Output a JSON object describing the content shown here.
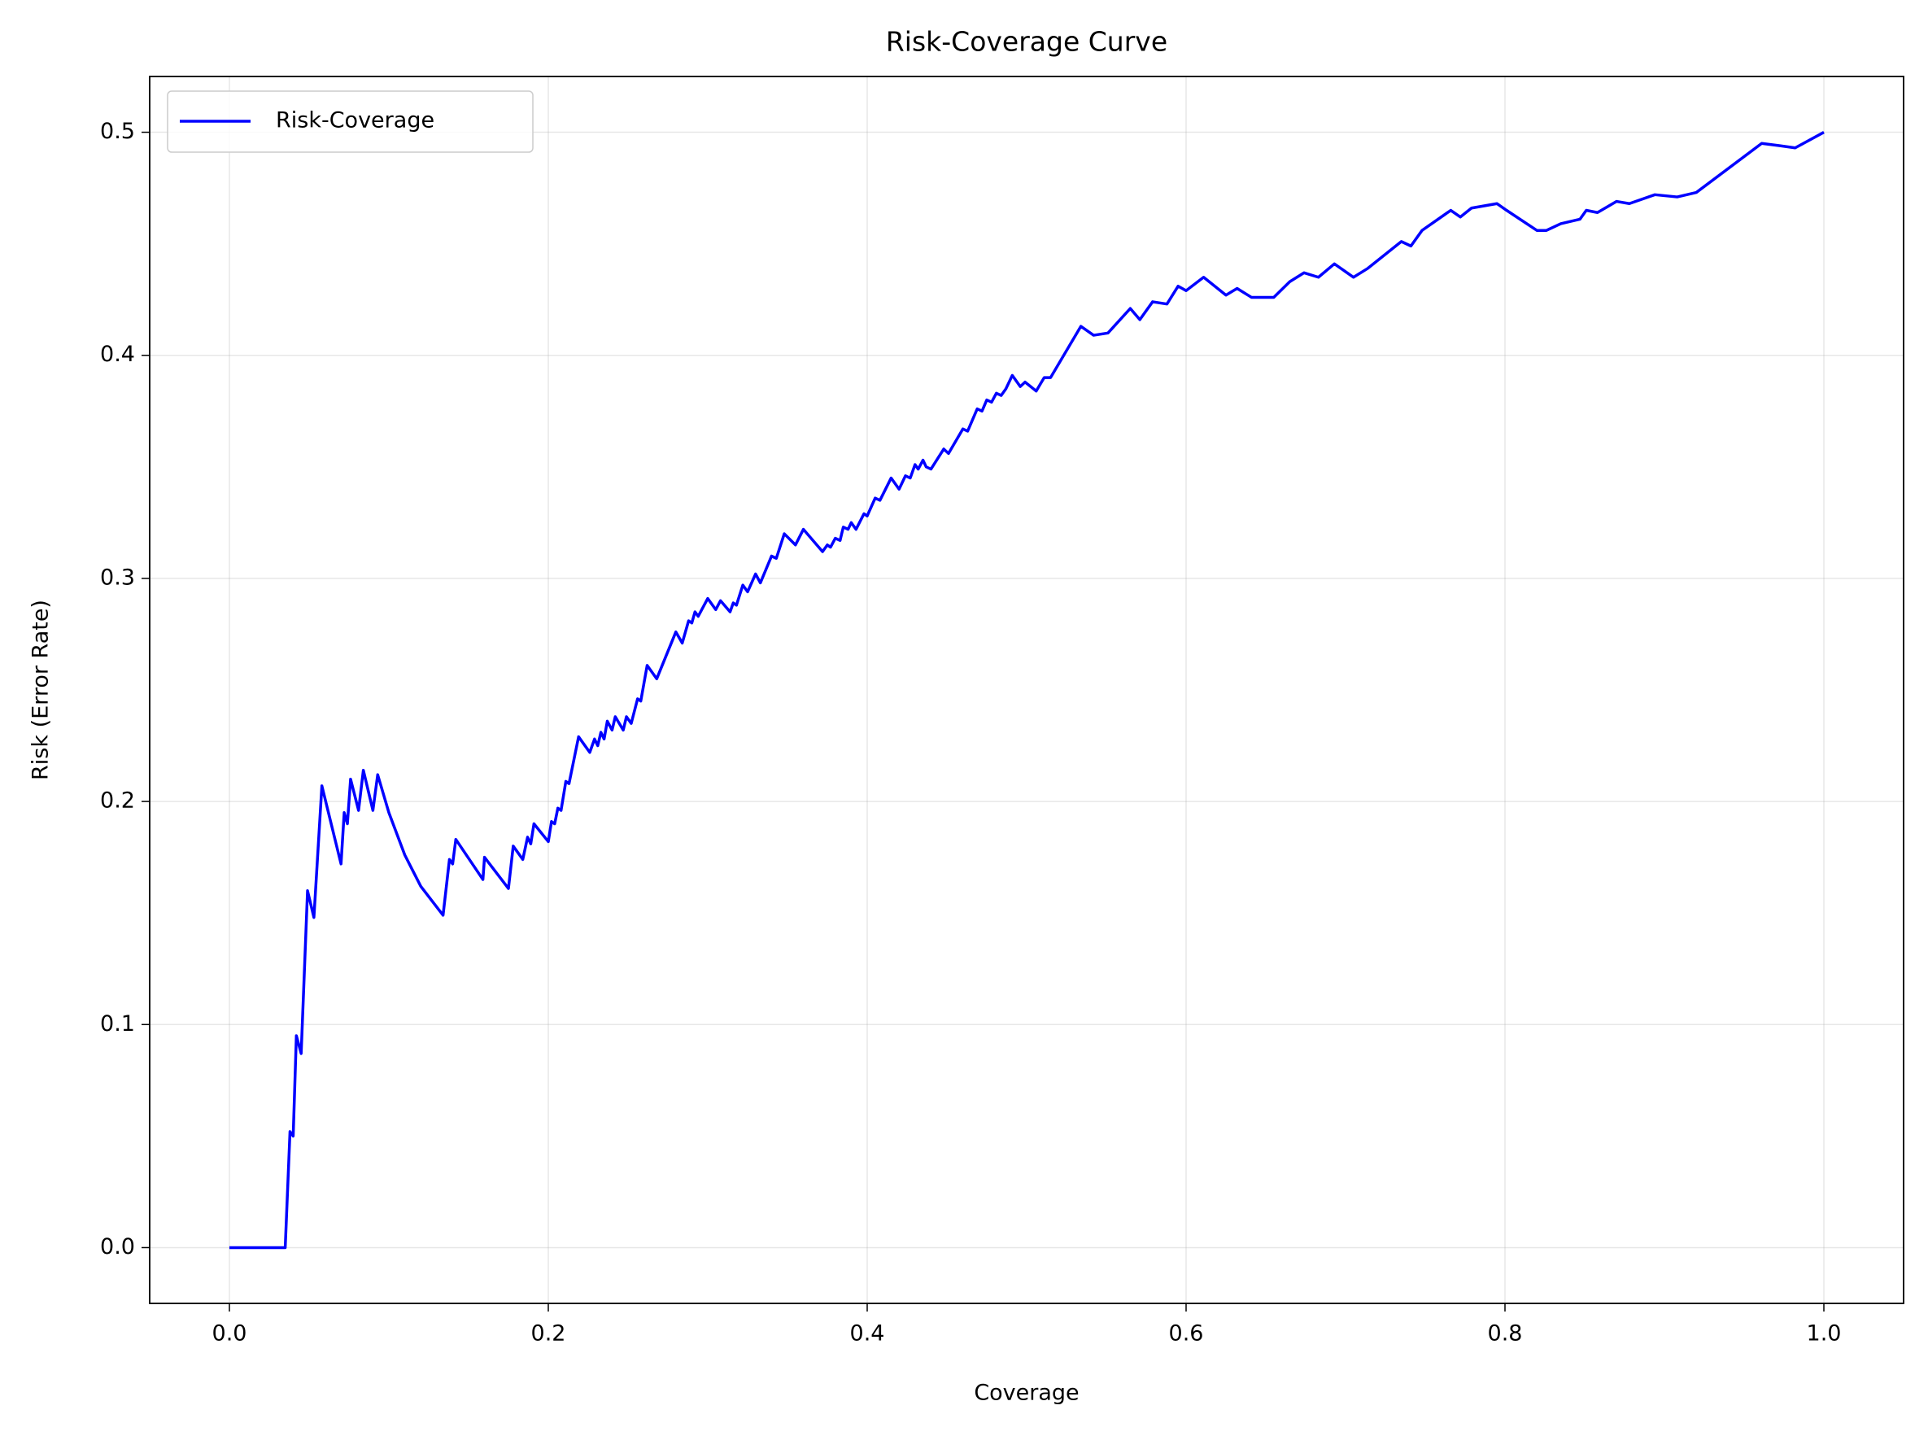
{
  "chart_data": {
    "type": "line",
    "title": "Risk-Coverage Curve",
    "x_label": "Coverage",
    "y_label": "Risk (Error Rate)",
    "x": [
      0,
      0.035,
      0.038,
      0.04,
      0.042,
      0.045,
      0.049,
      0.053,
      0.058,
      0.07,
      0.072,
      0.074,
      0.076,
      0.081,
      0.084,
      0.09,
      0.093,
      0.1,
      0.11,
      0.12,
      0.134,
      0.138,
      0.14,
      0.142,
      0.159,
      0.16,
      0.175,
      0.178,
      0.184,
      0.187,
      0.189,
      0.191,
      0.2,
      0.202,
      0.204,
      0.206,
      0.208,
      0.211,
      0.213,
      0.219,
      0.226,
      0.229,
      0.231,
      0.233,
      0.235,
      0.237,
      0.24,
      0.242,
      0.247,
      0.249,
      0.252,
      0.256,
      0.258,
      0.262,
      0.268,
      0.28,
      0.284,
      0.288,
      0.29,
      0.292,
      0.294,
      0.3,
      0.305,
      0.308,
      0.314,
      0.316,
      0.318,
      0.322,
      0.325,
      0.33,
      0.333,
      0.34,
      0.343,
      0.348,
      0.355,
      0.36,
      0.372,
      0.375,
      0.377,
      0.38,
      0.383,
      0.385,
      0.388,
      0.39,
      0.393,
      0.398,
      0.4,
      0.405,
      0.408,
      0.415,
      0.42,
      0.424,
      0.427,
      0.43,
      0.432,
      0.435,
      0.437,
      0.44,
      0.448,
      0.451,
      0.46,
      0.463,
      0.469,
      0.472,
      0.475,
      0.478,
      0.481,
      0.484,
      0.487,
      0.491,
      0.496,
      0.499,
      0.506,
      0.511,
      0.515,
      0.534,
      0.542,
      0.551,
      0.565,
      0.571,
      0.579,
      0.588,
      0.595,
      0.6,
      0.611,
      0.625,
      0.632,
      0.641,
      0.655,
      0.665,
      0.674,
      0.683,
      0.693,
      0.705,
      0.714,
      0.735,
      0.741,
      0.748,
      0.766,
      0.772,
      0.779,
      0.795,
      0.801,
      0.82,
      0.826,
      0.835,
      0.847,
      0.851,
      0.858,
      0.87,
      0.878,
      0.894,
      0.908,
      0.92,
      0.961,
      0.972,
      0.982,
      1.0
    ],
    "series": [
      {
        "name": "Risk-Coverage",
        "color": "#0000ff",
        "values": [
          0,
          0,
          0.052,
          0.05,
          0.095,
          0.087,
          0.16,
          0.148,
          0.207,
          0.172,
          0.195,
          0.19,
          0.21,
          0.196,
          0.214,
          0.196,
          0.212,
          0.195,
          0.176,
          0.162,
          0.149,
          0.174,
          0.172,
          0.183,
          0.165,
          0.175,
          0.161,
          0.18,
          0.174,
          0.184,
          0.181,
          0.19,
          0.182,
          0.191,
          0.19,
          0.197,
          0.196,
          0.209,
          0.208,
          0.229,
          0.222,
          0.228,
          0.225,
          0.231,
          0.228,
          0.236,
          0.232,
          0.238,
          0.232,
          0.238,
          0.235,
          0.246,
          0.245,
          0.261,
          0.255,
          0.276,
          0.271,
          0.281,
          0.28,
          0.285,
          0.283,
          0.291,
          0.286,
          0.29,
          0.285,
          0.289,
          0.288,
          0.297,
          0.294,
          0.302,
          0.298,
          0.31,
          0.309,
          0.32,
          0.315,
          0.322,
          0.312,
          0.315,
          0.314,
          0.318,
          0.317,
          0.323,
          0.322,
          0.325,
          0.322,
          0.329,
          0.328,
          0.336,
          0.335,
          0.345,
          0.34,
          0.346,
          0.345,
          0.351,
          0.349,
          0.353,
          0.35,
          0.349,
          0.358,
          0.356,
          0.367,
          0.366,
          0.376,
          0.375,
          0.38,
          0.379,
          0.383,
          0.382,
          0.385,
          0.391,
          0.386,
          0.388,
          0.384,
          0.39,
          0.39,
          0.413,
          0.409,
          0.41,
          0.421,
          0.416,
          0.424,
          0.423,
          0.431,
          0.429,
          0.435,
          0.427,
          0.43,
          0.426,
          0.426,
          0.433,
          0.437,
          0.435,
          0.441,
          0.435,
          0.439,
          0.451,
          0.449,
          0.456,
          0.465,
          0.462,
          0.466,
          0.468,
          0.465,
          0.456,
          0.456,
          0.459,
          0.461,
          0.465,
          0.464,
          0.469,
          0.468,
          0.472,
          0.471,
          0.473,
          0.495,
          0.494,
          0.493,
          0.5
        ]
      }
    ],
    "xlim": [
      -0.05,
      1.05
    ],
    "ylim": [
      -0.025,
      0.525
    ],
    "xticks": [
      {
        "value": 0,
        "label": "0.0"
      },
      0.2,
      0.4,
      0.6,
      0.8,
      {
        "value": 1,
        "label": "1.0"
      }
    ],
    "yticks": [
      {
        "value": 0,
        "label": "0.0"
      },
      0.1,
      0.2,
      0.3,
      0.4,
      0.5
    ],
    "grid": true,
    "legend": "upper left"
  }
}
